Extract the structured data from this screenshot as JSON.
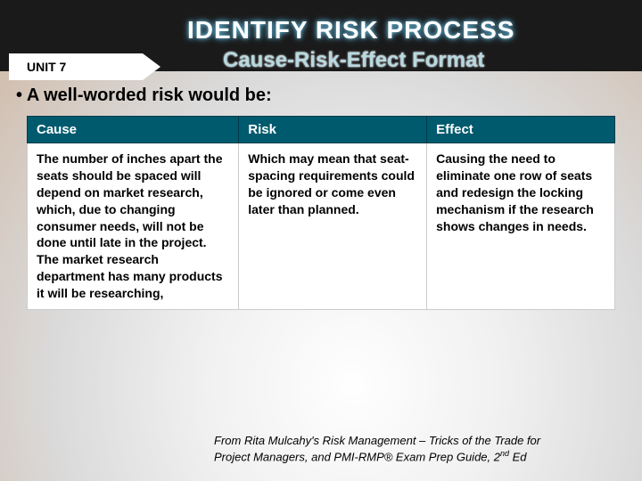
{
  "header": {
    "title": "IDENTIFY RISK PROCESS",
    "subtitle": "Cause-Risk-Effect Format",
    "unit_label": "UNIT 7"
  },
  "intro_bullet": "•   A well-worded risk would be:",
  "table": {
    "headers": {
      "cause": "Cause",
      "risk": "Risk",
      "effect": "Effect"
    },
    "row": {
      "cause": "The number of inches apart the seats should be spaced will depend on market research, which, due to changing consumer needs, will not be done until late in the project. The market research department has many products it will be researching,",
      "risk": "Which may mean that seat-spacing requirements could be ignored or come even later than planned.",
      "effect": "Causing the need to eliminate one row of seats and redesign the locking mechanism if the research shows changes in needs."
    }
  },
  "footer": {
    "line1": "From Rita Mulcahy's Risk Management – Tricks of the Trade for",
    "line2_a": "Project Managers, and PMI-RMP® Exam Prep Guide, 2",
    "line2_sup": "nd",
    "line2_b": " Ed"
  },
  "colors": {
    "header_bg": "#005a6e",
    "topbar_bg": "#1a1a1a",
    "glow": "#5aa8c8"
  }
}
